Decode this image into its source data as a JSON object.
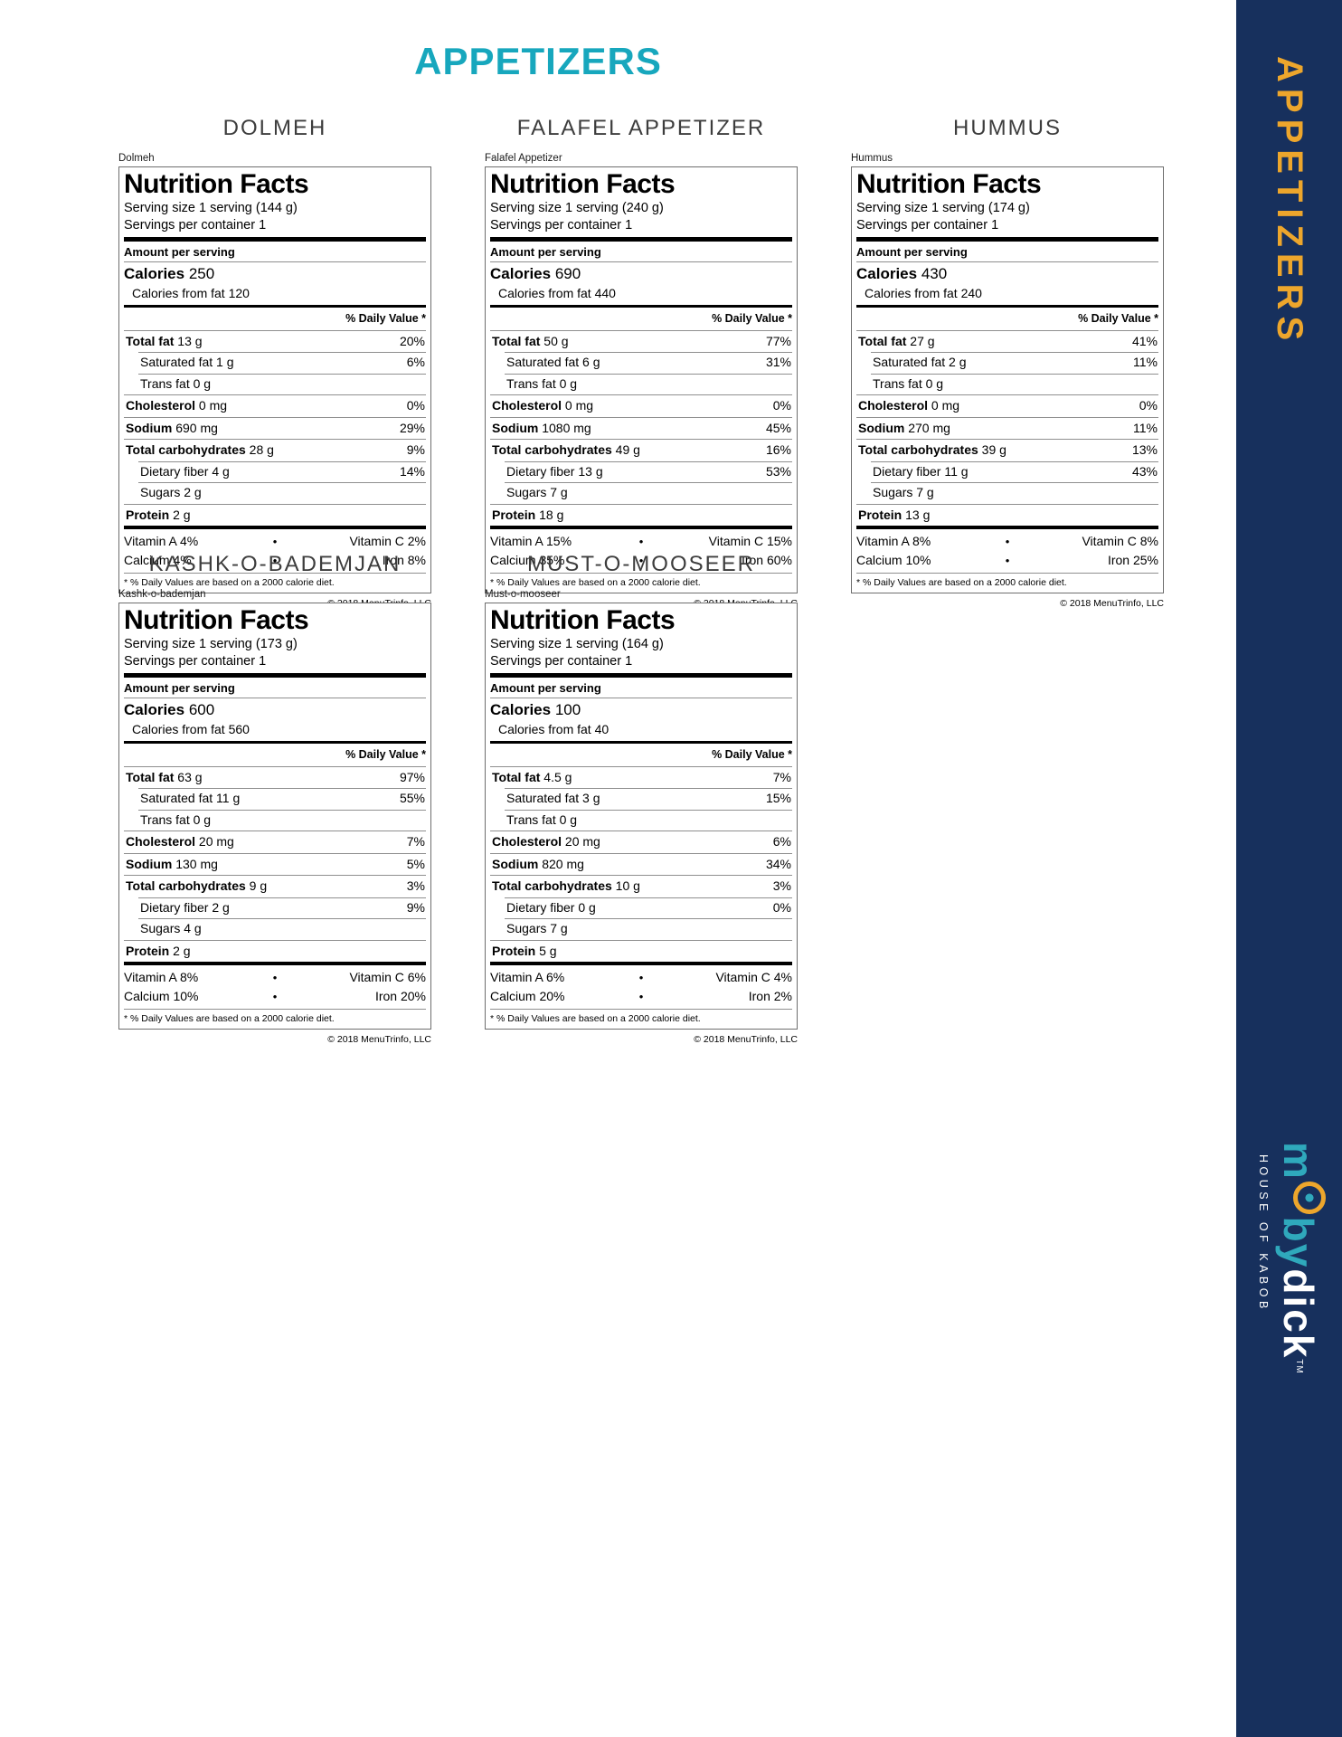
{
  "page_title": "APPETIZERS",
  "colors": {
    "title_teal": "#17A7BD",
    "sidebar_navy": "#17305D",
    "sidebar_gold": "#EDA62C",
    "brand_teal": "#2FA9BC",
    "brand_white": "#FFFFFF"
  },
  "sidebar": {
    "vertical_title": "APPETIZERS",
    "logo": {
      "brand_m": "m",
      "brand_by": "by",
      "brand_dick": "dick",
      "trademark": "TM",
      "tagline": "HOUSE OF KABOB"
    }
  },
  "shared": {
    "nf_title": "Nutrition Facts",
    "amount_per_serving": "Amount per serving",
    "calories_word": "Calories",
    "daily_value_header": "% Daily Value *",
    "footnote": "* % Daily Values are based on a 2000 calorie diet.",
    "copyright": "© 2018 MenuTrinfo, LLC",
    "bullet": "•"
  },
  "items": [
    {
      "heading": "DOLMEH",
      "name": "Dolmeh",
      "serving_size": "Serving size 1 serving (144 g)",
      "servings": "Servings per container 1",
      "calories": "250",
      "calories_from_fat": "Calories from fat 120",
      "rows": [
        {
          "label": "Total fat",
          "value": "13 g",
          "pct": "20%"
        },
        {
          "label": "Saturated fat",
          "value": "1 g",
          "pct": "6%",
          "indent": true
        },
        {
          "label": "Trans fat",
          "value": "0 g",
          "pct": "",
          "indent": true
        },
        {
          "label": "Cholesterol",
          "value": "0 mg",
          "pct": "0%"
        },
        {
          "label": "Sodium",
          "value": "690 mg",
          "pct": "29%"
        },
        {
          "label": "Total carbohydrates",
          "value": "28 g",
          "pct": "9%"
        },
        {
          "label": "Dietary fiber",
          "value": "4 g",
          "pct": "14%",
          "indent": true
        },
        {
          "label": "Sugars",
          "value": "2 g",
          "pct": "",
          "indent": true
        },
        {
          "label": "Protein",
          "value": "2 g",
          "pct": ""
        }
      ],
      "vit_a": "Vitamin A 4%",
      "vit_c": "Vitamin C 2%",
      "calcium": "Calcium 4%",
      "iron": "Iron 8%"
    },
    {
      "heading": "FALAFEL APPETIZER",
      "name": "Falafel Appetizer",
      "serving_size": "Serving size 1 serving (240 g)",
      "servings": "Servings per container 1",
      "calories": "690",
      "calories_from_fat": "Calories from fat 440",
      "rows": [
        {
          "label": "Total fat",
          "value": "50 g",
          "pct": "77%"
        },
        {
          "label": "Saturated fat",
          "value": "6 g",
          "pct": "31%",
          "indent": true
        },
        {
          "label": "Trans fat",
          "value": "0 g",
          "pct": "",
          "indent": true
        },
        {
          "label": "Cholesterol",
          "value": "0 mg",
          "pct": "0%"
        },
        {
          "label": "Sodium",
          "value": "1080 mg",
          "pct": "45%"
        },
        {
          "label": "Total carbohydrates",
          "value": "49 g",
          "pct": "16%"
        },
        {
          "label": "Dietary fiber",
          "value": "13 g",
          "pct": "53%",
          "indent": true
        },
        {
          "label": "Sugars",
          "value": "7 g",
          "pct": "",
          "indent": true
        },
        {
          "label": "Protein",
          "value": "18 g",
          "pct": ""
        }
      ],
      "vit_a": "Vitamin A 15%",
      "vit_c": "Vitamin C 15%",
      "calcium": "Calcium 35%",
      "iron": "Iron 60%"
    },
    {
      "heading": "HUMMUS",
      "name": "Hummus",
      "serving_size": "Serving size 1 serving (174 g)",
      "servings": "Servings per container 1",
      "calories": "430",
      "calories_from_fat": "Calories from fat 240",
      "rows": [
        {
          "label": "Total fat",
          "value": "27 g",
          "pct": "41%"
        },
        {
          "label": "Saturated fat",
          "value": "2 g",
          "pct": "11%",
          "indent": true
        },
        {
          "label": "Trans fat",
          "value": "0 g",
          "pct": "",
          "indent": true
        },
        {
          "label": "Cholesterol",
          "value": "0 mg",
          "pct": "0%"
        },
        {
          "label": "Sodium",
          "value": "270 mg",
          "pct": "11%"
        },
        {
          "label": "Total carbohydrates",
          "value": "39 g",
          "pct": "13%"
        },
        {
          "label": "Dietary fiber",
          "value": "11 g",
          "pct": "43%",
          "indent": true
        },
        {
          "label": "Sugars",
          "value": "7 g",
          "pct": "",
          "indent": true
        },
        {
          "label": "Protein",
          "value": "13 g",
          "pct": ""
        }
      ],
      "vit_a": "Vitamin A 8%",
      "vit_c": "Vitamin C 8%",
      "calcium": "Calcium 10%",
      "iron": "Iron 25%"
    },
    {
      "heading": "KASHK-O-BADEMJAN",
      "name": "Kashk-o-bademjan",
      "serving_size": "Serving size 1 serving (173 g)",
      "servings": "Servings per container 1",
      "calories": "600",
      "calories_from_fat": "Calories from fat 560",
      "rows": [
        {
          "label": "Total fat",
          "value": "63 g",
          "pct": "97%"
        },
        {
          "label": "Saturated fat",
          "value": "11 g",
          "pct": "55%",
          "indent": true
        },
        {
          "label": "Trans fat",
          "value": "0 g",
          "pct": "",
          "indent": true
        },
        {
          "label": "Cholesterol",
          "value": "20 mg",
          "pct": "7%"
        },
        {
          "label": "Sodium",
          "value": "130 mg",
          "pct": "5%"
        },
        {
          "label": "Total carbohydrates",
          "value": "9 g",
          "pct": "3%"
        },
        {
          "label": "Dietary fiber",
          "value": "2 g",
          "pct": "9%",
          "indent": true
        },
        {
          "label": "Sugars",
          "value": "4 g",
          "pct": "",
          "indent": true
        },
        {
          "label": "Protein",
          "value": "2 g",
          "pct": ""
        }
      ],
      "vit_a": "Vitamin A 8%",
      "vit_c": "Vitamin C 6%",
      "calcium": "Calcium 10%",
      "iron": "Iron 20%"
    },
    {
      "heading": "MUST-O-MOOSEER",
      "name": "Must-o-mooseer",
      "serving_size": "Serving size 1 serving (164 g)",
      "servings": "Servings per container 1",
      "calories": "100",
      "calories_from_fat": "Calories from fat 40",
      "rows": [
        {
          "label": "Total fat",
          "value": "4.5 g",
          "pct": "7%"
        },
        {
          "label": "Saturated fat",
          "value": "3 g",
          "pct": "15%",
          "indent": true
        },
        {
          "label": "Trans fat",
          "value": "0 g",
          "pct": "",
          "indent": true
        },
        {
          "label": "Cholesterol",
          "value": "20 mg",
          "pct": "6%"
        },
        {
          "label": "Sodium",
          "value": "820 mg",
          "pct": "34%"
        },
        {
          "label": "Total carbohydrates",
          "value": "10 g",
          "pct": "3%"
        },
        {
          "label": "Dietary fiber",
          "value": "0 g",
          "pct": "0%",
          "indent": true
        },
        {
          "label": "Sugars",
          "value": "7 g",
          "pct": "",
          "indent": true
        },
        {
          "label": "Protein",
          "value": "5 g",
          "pct": ""
        }
      ],
      "vit_a": "Vitamin A 6%",
      "vit_c": "Vitamin C 4%",
      "calcium": "Calcium 20%",
      "iron": "Iron 2%"
    }
  ]
}
